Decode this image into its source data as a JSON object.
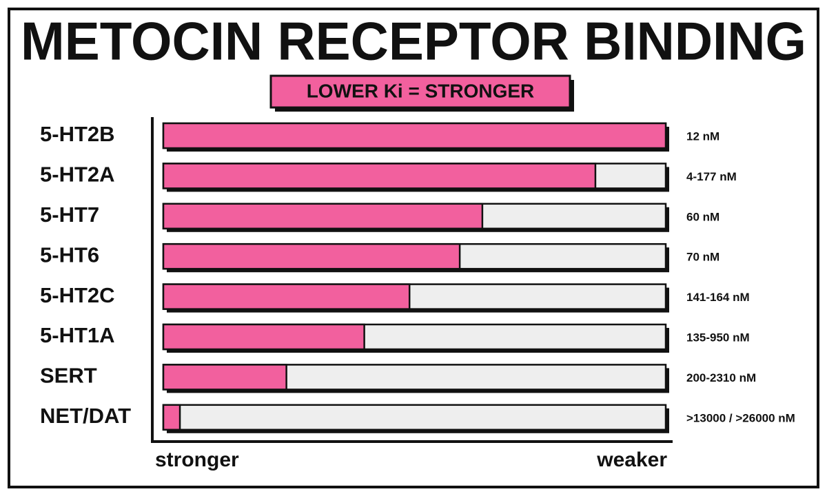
{
  "title": "METOCIN RECEPTOR BINDING",
  "subtitle": "LOWER Ki = STRONGER",
  "rows": [
    {
      "label": "5-HT2B",
      "ki": "12 nM",
      "strength": 100
    },
    {
      "label": "5-HT2A",
      "ki": "4-177 nM",
      "strength": 86
    },
    {
      "label": "5-HT7",
      "ki": "60 nM",
      "strength": 63.5
    },
    {
      "label": "5-HT6",
      "ki": "70 nM",
      "strength": 59
    },
    {
      "label": "5-HT2C",
      "ki": "141-164 nM",
      "strength": 49
    },
    {
      "label": "5-HT1A",
      "ki": "135-950 nM",
      "strength": 40
    },
    {
      "label": "SERT",
      "ki": "200-2310 nM",
      "strength": 24.5
    },
    {
      "label": "NET/DAT",
      "ki": ">13000 / >26000 nM",
      "strength": 3.3
    }
  ],
  "axis": {
    "low": "stronger",
    "high": "weaker"
  }
}
